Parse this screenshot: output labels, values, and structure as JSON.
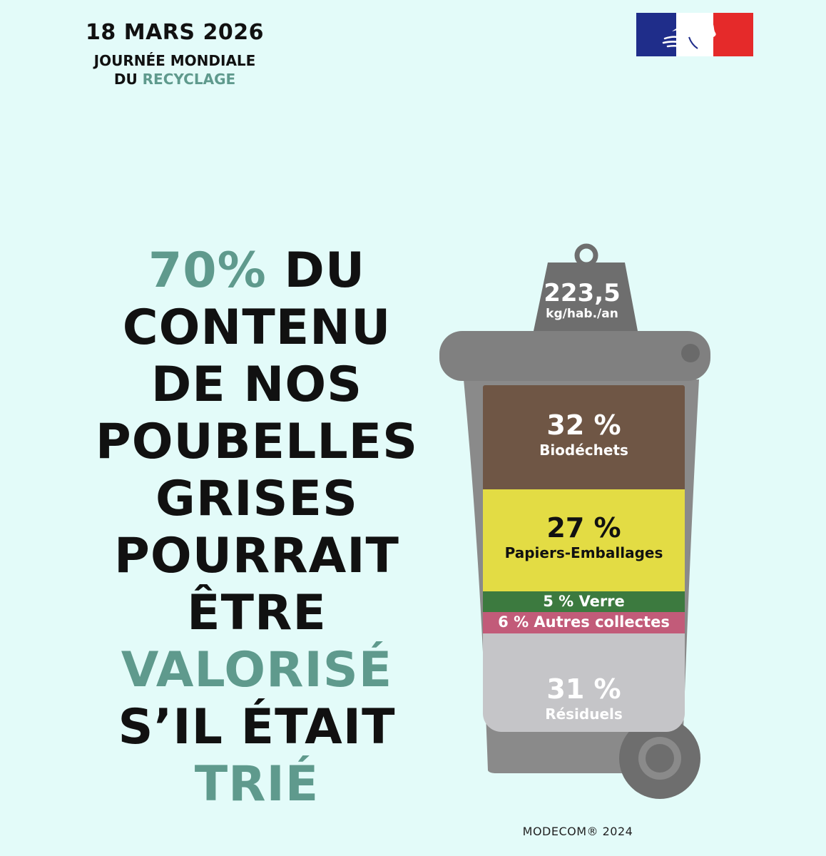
{
  "header": {
    "date": "18 MARS 2026",
    "event_line1": "JOURNÉE MONDIALE",
    "event_line2_prefix": "DU ",
    "event_line2_accent": "RECYCLAGE"
  },
  "headline": {
    "line1_accent": "70%",
    "line1_rest": " DU",
    "line2": "CONTENU",
    "line3": "DE NOS",
    "line4": "POUBELLES",
    "line5": "GRISES",
    "line6": "POURRAIT",
    "line7": "ÊTRE",
    "line8_accent": "VALORISÉ",
    "line9": "S’IL ÉTAIT",
    "line10_accent": "TRIÉ"
  },
  "bin": {
    "weight_value": "223,5",
    "weight_unit": "kg/hab./an",
    "segments": [
      {
        "pct": "32 %",
        "label": "Biodéchets",
        "share": 32,
        "color": "#6f5645"
      },
      {
        "pct": "27 %",
        "label": "Papiers-Emballages",
        "share": 27,
        "color": "#e3dc44"
      },
      {
        "text": "5 % Verre",
        "share": 5,
        "color": "#3c7a3f"
      },
      {
        "text": "6 % Autres collectes",
        "share": 6,
        "color": "#c25b79"
      },
      {
        "pct": "31 %",
        "label": "Résiduels",
        "share": 31,
        "color": "#c5c5c8"
      }
    ]
  },
  "source": "MODECOM® 2024",
  "colors": {
    "background": "#e3fbf9",
    "accent": "#5f9a8d",
    "bin_body": "#8a8a8a",
    "bin_lid": "#808080"
  }
}
